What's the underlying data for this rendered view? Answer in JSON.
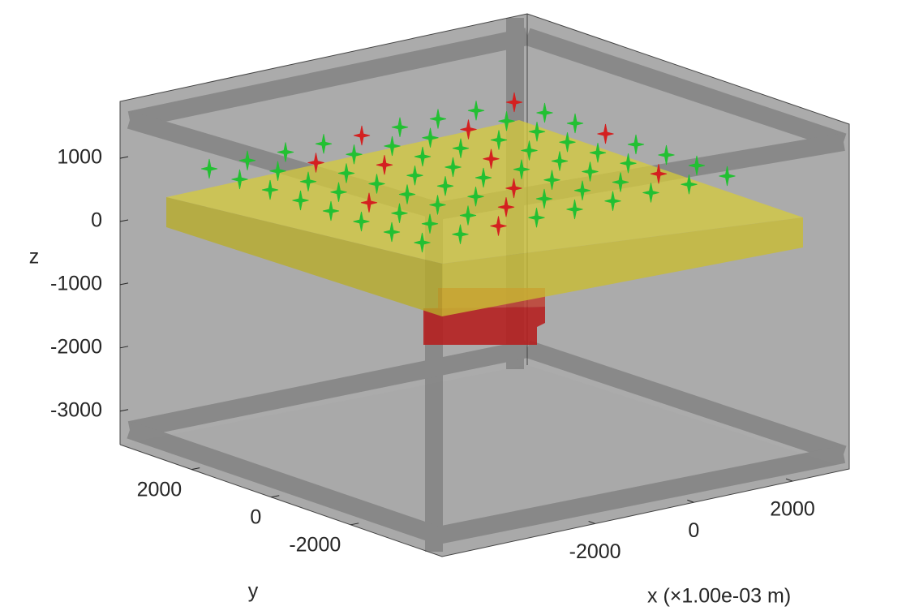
{
  "chart_data": {
    "type": "scatter3d",
    "xlabel": "x  (×1.00e-03 m)",
    "ylabel": "y",
    "zlabel": "z",
    "xlim": [
      -5100,
      3150
    ],
    "xticks": [
      -2000,
      0,
      2000
    ],
    "ylim": [
      3800,
      -4300
    ],
    "yticks": [
      2000,
      0,
      -2000
    ],
    "zlim": [
      -3530,
      1900
    ],
    "zticks": [
      1000,
      0,
      -1000,
      -2000,
      -3000
    ]
  }
}
